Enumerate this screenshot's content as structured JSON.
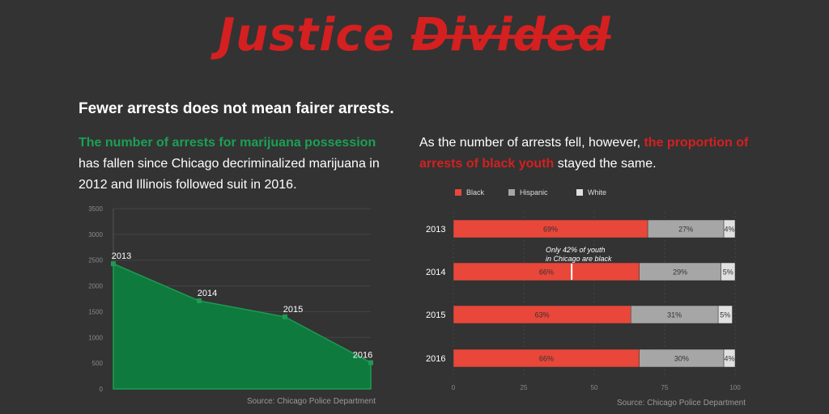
{
  "title": {
    "word1": "Justice",
    "word2": "Divided"
  },
  "subtitle": "Fewer arrests does not mean fairer arrests.",
  "left_text": {
    "highlight": "The number of arrests for marijuana possession",
    "rest": " has fallen since Chicago decriminalized marijuana in 2012 and Illinois followed suit in 2016."
  },
  "right_text": {
    "lead": "As the number of arrests fell, however, ",
    "highlight": "the proportion of arrests of black youth",
    "rest": " stayed the same."
  },
  "colors": {
    "background": "#333333",
    "title_red": "#d42020",
    "area_green": "#0e7a3e",
    "black_series": "#e8473a",
    "hispanic_series": "#a6a6a6",
    "white_series": "#e0e0e0"
  },
  "chart_data": [
    {
      "type": "area",
      "x": [
        "2013",
        "2014",
        "2015",
        "2016"
      ],
      "values": [
        2430,
        1710,
        1400,
        510
      ],
      "ylim": [
        0,
        3500
      ],
      "yticks": [
        "0",
        "500",
        "1000",
        "1500",
        "2000",
        "2500",
        "3000",
        "3500"
      ],
      "point_labels": [
        "2013",
        "2014",
        "2015",
        "2016"
      ],
      "source": "Source: Chicago Police Department"
    },
    {
      "type": "bar",
      "orientation": "horizontal-stacked",
      "categories": [
        "2013",
        "2014",
        "2015",
        "2016"
      ],
      "series": [
        {
          "name": "Black",
          "values": [
            69,
            66,
            63,
            66
          ],
          "labels": [
            "69%",
            "66%",
            "63%",
            "66%"
          ]
        },
        {
          "name": "Hispanic",
          "values": [
            27,
            29,
            31,
            30
          ],
          "labels": [
            "27%",
            "29%",
            "31%",
            "30%"
          ]
        },
        {
          "name": "White",
          "values": [
            4,
            5,
            5,
            4
          ],
          "labels": [
            "4%",
            "5%",
            "5%",
            "4%"
          ]
        }
      ],
      "xlim": [
        0,
        100
      ],
      "xticks": [
        "0",
        "25",
        "50",
        "75",
        "100"
      ],
      "annotation": {
        "line1": "Only 42% of youth",
        "line2": "in Chicago are black",
        "value": 42,
        "category": "2014"
      },
      "source": "Source: Chicago Police Department"
    }
  ]
}
